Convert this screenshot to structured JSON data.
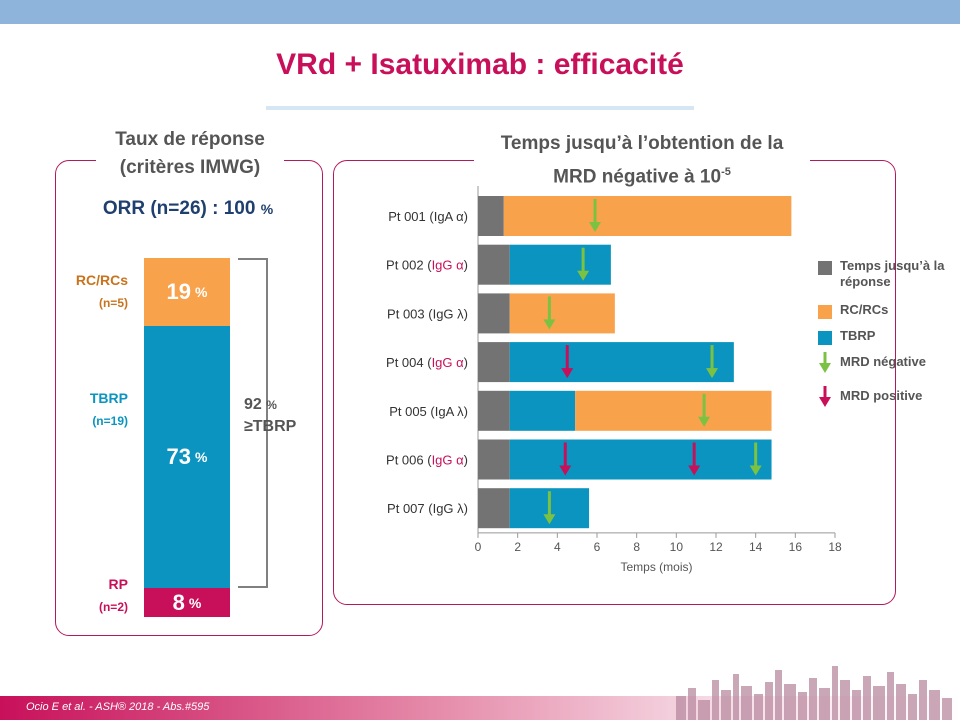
{
  "title": "VRd + Isatuximab : efficacité",
  "left_panel": {
    "heading_line1": "Taux de réponse",
    "heading_line2": "(critères IMWG)",
    "orr_label": "ORR (n=26) : 100",
    "orr_pct": "%",
    "segments": [
      {
        "label": "RC/RCs",
        "n": "(n=5)",
        "value": "19",
        "pct": "%",
        "share": 19,
        "color": "#f8a24c",
        "label_color": "#c8731d"
      },
      {
        "label": "TBRP",
        "n": "(n=19)",
        "value": "73",
        "pct": "%",
        "share": 73,
        "color": "#0a94bf",
        "label_color": "#0a94bf"
      },
      {
        "label": "RP",
        "n": "(n=2)",
        "value": "8",
        "pct": "%",
        "share": 8,
        "color": "#c8105a",
        "label_color": "#c8105a"
      }
    ],
    "bracket_value": "92",
    "bracket_pct": "%",
    "bracket_label": "≥TBRP"
  },
  "right_panel": {
    "heading_line1": "Temps jusqu’à l’obtention de la",
    "heading_line2": "MRD négative à 10",
    "heading_sup": "-5"
  },
  "chart_data": {
    "type": "bar",
    "orientation": "horizontal",
    "stacked": true,
    "xlabel": "Temps (mois)",
    "xlim": [
      0,
      18
    ],
    "xticks": [
      0,
      2,
      4,
      6,
      8,
      10,
      12,
      14,
      16,
      18
    ],
    "categories": [
      {
        "prefix": "Pt 001 (",
        "isotype": "IgA",
        "chain": "α",
        "isotype_color": "#333333"
      },
      {
        "prefix": "Pt 002 (",
        "isotype": "IgG",
        "chain": "α",
        "isotype_color": "#c8105a"
      },
      {
        "prefix": "Pt 003 (",
        "isotype": "IgG",
        "chain": "λ",
        "isotype_color": "#333333"
      },
      {
        "prefix": "Pt 004 (",
        "isotype": "IgG",
        "chain": "α",
        "isotype_color": "#c8105a"
      },
      {
        "prefix": "Pt 005 (",
        "isotype": "IgA",
        "chain": "λ",
        "isotype_color": "#333333"
      },
      {
        "prefix": "Pt 006 (",
        "isotype": "IgG",
        "chain": "α",
        "isotype_color": "#c8105a"
      },
      {
        "prefix": "Pt 007 (",
        "isotype": "IgG",
        "chain": "λ",
        "isotype_color": "#333333"
      }
    ],
    "bars": [
      {
        "segments": [
          {
            "series": "response",
            "end": 1.3
          },
          {
            "series": "rc",
            "end": 15.8
          }
        ]
      },
      {
        "segments": [
          {
            "series": "response",
            "end": 1.6
          },
          {
            "series": "tbrp",
            "end": 6.7
          }
        ]
      },
      {
        "segments": [
          {
            "series": "response",
            "end": 1.6
          },
          {
            "series": "rc",
            "end": 6.9
          }
        ]
      },
      {
        "segments": [
          {
            "series": "response",
            "end": 1.6
          },
          {
            "series": "tbrp",
            "end": 12.9
          }
        ]
      },
      {
        "segments": [
          {
            "series": "response",
            "end": 1.6
          },
          {
            "series": "tbrp",
            "end": 4.9
          },
          {
            "series": "rc",
            "end": 14.8
          }
        ]
      },
      {
        "segments": [
          {
            "series": "response",
            "end": 1.6
          },
          {
            "series": "tbrp",
            "end": 14.8
          }
        ]
      },
      {
        "segments": [
          {
            "series": "response",
            "end": 1.6
          },
          {
            "series": "tbrp",
            "end": 5.6
          }
        ]
      }
    ],
    "mrd_negative": [
      [
        0,
        5.9
      ],
      [
        1,
        5.3
      ],
      [
        2,
        3.6
      ],
      [
        3,
        11.8
      ],
      [
        4,
        11.4
      ],
      [
        5,
        14.0
      ],
      [
        6,
        3.6
      ]
    ],
    "mrd_positive": [
      [
        3,
        4.5
      ],
      [
        5,
        4.4
      ],
      [
        5,
        10.9
      ]
    ],
    "colors": {
      "response": "#737373",
      "rc": "#f8a24c",
      "tbrp": "#0a94bf",
      "mrd_negative": "#7cc242",
      "mrd_positive": "#c8105a"
    },
    "legend": [
      {
        "key": "response",
        "label": "Temps jusqu’à la réponse"
      },
      {
        "key": "rc",
        "label": "RC/RCs"
      },
      {
        "key": "tbrp",
        "label": "TBRP"
      },
      {
        "key": "mrd_negative",
        "label": "MRD négative"
      },
      {
        "key": "mrd_positive",
        "label": "MRD positive"
      }
    ],
    "legend_position": "right"
  },
  "footer": {
    "citation": "Ocio E et al. - ASH® 2018 - Abs.#595"
  }
}
